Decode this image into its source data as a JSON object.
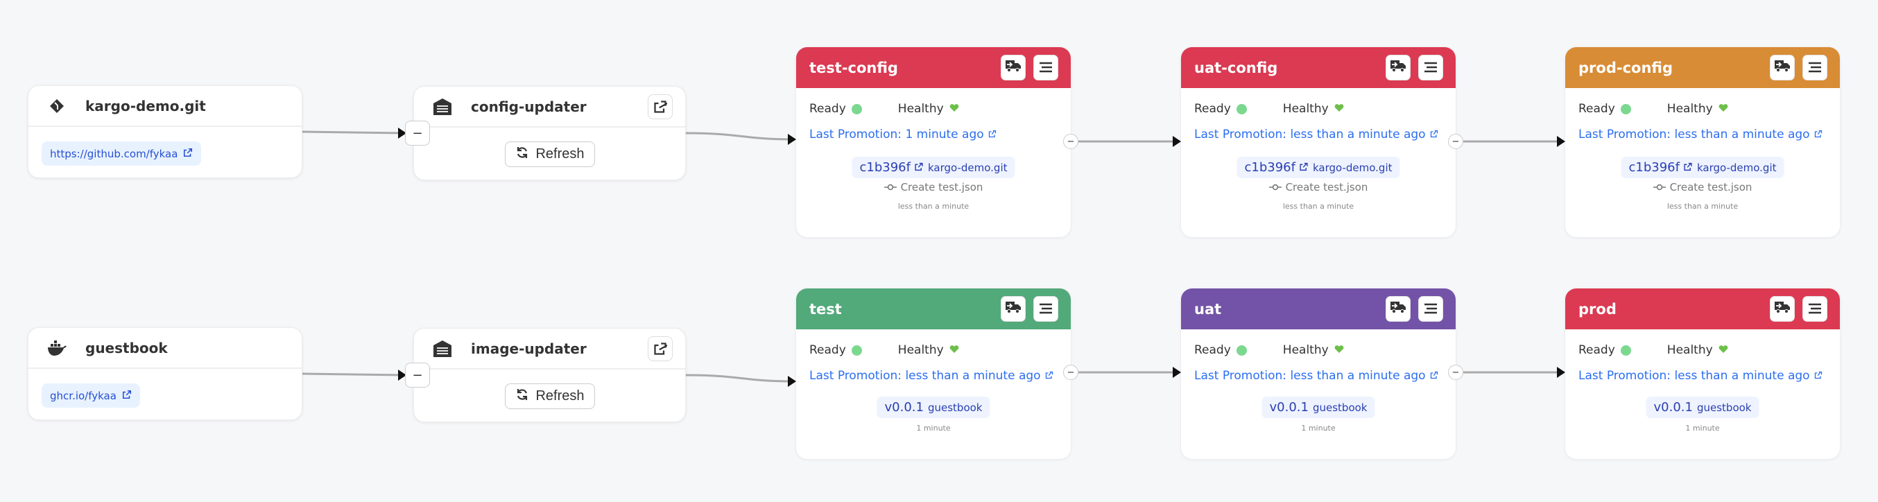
{
  "sources": [
    {
      "name": "kargo-demo.git",
      "icon": "git-icon",
      "link": "https://github.com/fykaa"
    },
    {
      "name": "guestbook",
      "icon": "docker-icon",
      "link": "ghcr.io/fykaa"
    }
  ],
  "updaters": [
    {
      "name": "config-updater",
      "refresh_label": "Refresh"
    },
    {
      "name": "image-updater",
      "refresh_label": "Refresh"
    }
  ],
  "stages": [
    {
      "name": "test-config",
      "color": "#db3a52",
      "ready": "Ready",
      "healthy": "Healthy",
      "promotion": "Last Promotion: 1 minute ago",
      "freight_id": "c1b396f",
      "freight_source": "kargo-demo.git",
      "message": "Create test.json",
      "time": "less than a minute"
    },
    {
      "name": "uat-config",
      "color": "#db3a52",
      "ready": "Ready",
      "healthy": "Healthy",
      "promotion": "Last Promotion: less than a minute ago",
      "freight_id": "c1b396f",
      "freight_source": "kargo-demo.git",
      "message": "Create test.json",
      "time": "less than a minute"
    },
    {
      "name": "prod-config",
      "color": "#d88c35",
      "ready": "Ready",
      "healthy": "Healthy",
      "promotion": "Last Promotion: less than a minute ago",
      "freight_id": "c1b396f",
      "freight_source": "kargo-demo.git",
      "message": "Create test.json",
      "time": "less than a minute"
    },
    {
      "name": "test",
      "color": "#52a97a",
      "ready": "Ready",
      "healthy": "Healthy",
      "promotion": "Last Promotion: less than a minute ago",
      "freight_id": "v0.0.1",
      "freight_source": "guestbook",
      "time": "1 minute"
    },
    {
      "name": "uat",
      "color": "#7353a7",
      "ready": "Ready",
      "healthy": "Healthy",
      "promotion": "Last Promotion: less than a minute ago",
      "freight_id": "v0.0.1",
      "freight_source": "guestbook",
      "time": "1 minute"
    },
    {
      "name": "prod",
      "color": "#db3a52",
      "ready": "Ready",
      "healthy": "Healthy",
      "promotion": "Last Promotion: less than a minute ago",
      "freight_id": "v0.0.1",
      "freight_source": "guestbook",
      "time": "1 minute"
    }
  ]
}
